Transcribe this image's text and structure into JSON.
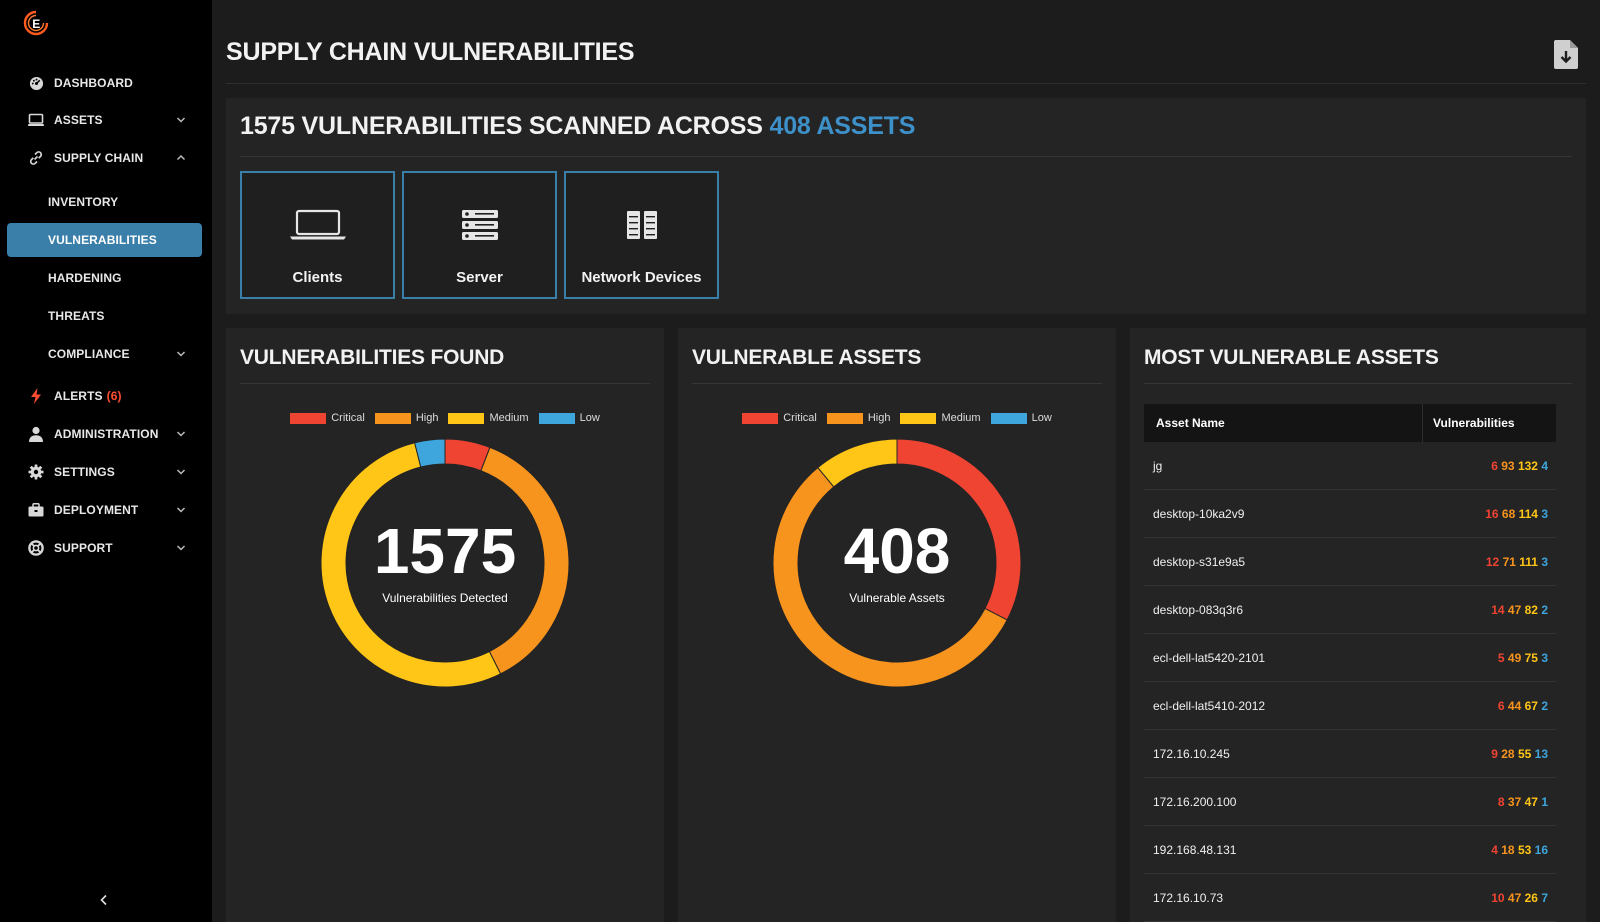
{
  "sidebar": {
    "items": [
      {
        "label": "DASHBOARD",
        "icon": "dashboard-gauge-icon"
      },
      {
        "label": "ASSETS",
        "icon": "monitor-icon",
        "expandable": true
      },
      {
        "label": "SUPPLY CHAIN",
        "icon": "link-icon",
        "expandable": true,
        "expanded": true
      },
      {
        "label": "INVENTORY"
      },
      {
        "label": "VULNERABILITIES",
        "active": true
      },
      {
        "label": "HARDENING"
      },
      {
        "label": "THREATS"
      },
      {
        "label": "COMPLIANCE",
        "expandable": true
      },
      {
        "label": "ALERTS",
        "icon": "lightning-icon",
        "count": "(6)"
      },
      {
        "label": "ADMINISTRATION",
        "icon": "user-icon",
        "expandable": true
      },
      {
        "label": "SETTINGS",
        "icon": "gear-icon",
        "expandable": true
      },
      {
        "label": "DEPLOYMENT",
        "icon": "briefcase-icon",
        "expandable": true
      },
      {
        "label": "SUPPORT",
        "icon": "lifebuoy-icon",
        "expandable": true
      }
    ]
  },
  "header": {
    "title": "SUPPLY CHAIN VULNERABILITIES"
  },
  "summary": {
    "heading_prefix": "1575 VULNERABILITIES SCANNED ACROSS",
    "heading_accent": "408 ASSETS",
    "tiles": [
      {
        "label": "Clients",
        "icon": "laptop-icon"
      },
      {
        "label": "Server",
        "icon": "server-icon"
      },
      {
        "label": "Network Devices",
        "icon": "network-rack-icon"
      }
    ]
  },
  "colors": {
    "critical": "#f04432",
    "high": "#f7941d",
    "medium": "#ffc617",
    "low": "#3ea6dc",
    "accent": "#3a7eaa"
  },
  "legend": [
    "Critical",
    "High",
    "Medium",
    "Low"
  ],
  "chart_data": [
    {
      "type": "pie",
      "title": "VULNERABILITIES FOUND",
      "center_value": "1575",
      "center_label": "Vulnerabilities Detected",
      "categories": [
        "Critical",
        "High",
        "Medium",
        "Low"
      ],
      "values": [
        93,
        578,
        842,
        62
      ]
    },
    {
      "type": "pie",
      "title": "VULNERABLE ASSETS",
      "center_value": "408",
      "center_label": "Vulnerable Assets",
      "categories": [
        "Critical",
        "High",
        "Medium",
        "Low"
      ],
      "values": [
        133,
        230,
        45,
        0
      ]
    }
  ],
  "most_vulnerable": {
    "title": "MOST VULNERABLE ASSETS",
    "headers": [
      "Asset Name",
      "Vulnerabilities"
    ],
    "rows": [
      {
        "name": "jg",
        "critical": "6",
        "high": "93",
        "medium": "132",
        "low": "4"
      },
      {
        "name": "desktop-10ka2v9",
        "critical": "16",
        "high": "68",
        "medium": "114",
        "low": "3"
      },
      {
        "name": "desktop-s31e9a5",
        "critical": "12",
        "high": "71",
        "medium": "111",
        "low": "3"
      },
      {
        "name": "desktop-083q3r6",
        "critical": "14",
        "high": "47",
        "medium": "82",
        "low": "2"
      },
      {
        "name": "ecl-dell-lat5420-2101",
        "critical": "5",
        "high": "49",
        "medium": "75",
        "low": "3"
      },
      {
        "name": "ecl-dell-lat5410-2012",
        "critical": "6",
        "high": "44",
        "medium": "67",
        "low": "2"
      },
      {
        "name": "172.16.10.245",
        "critical": "9",
        "high": "28",
        "medium": "55",
        "low": "13"
      },
      {
        "name": "172.16.200.100",
        "critical": "8",
        "high": "37",
        "medium": "47",
        "low": "1"
      },
      {
        "name": "192.168.48.131",
        "critical": "4",
        "high": "18",
        "medium": "53",
        "low": "16"
      },
      {
        "name": "172.16.10.73",
        "critical": "10",
        "high": "47",
        "medium": "26",
        "low": "7"
      }
    ]
  }
}
